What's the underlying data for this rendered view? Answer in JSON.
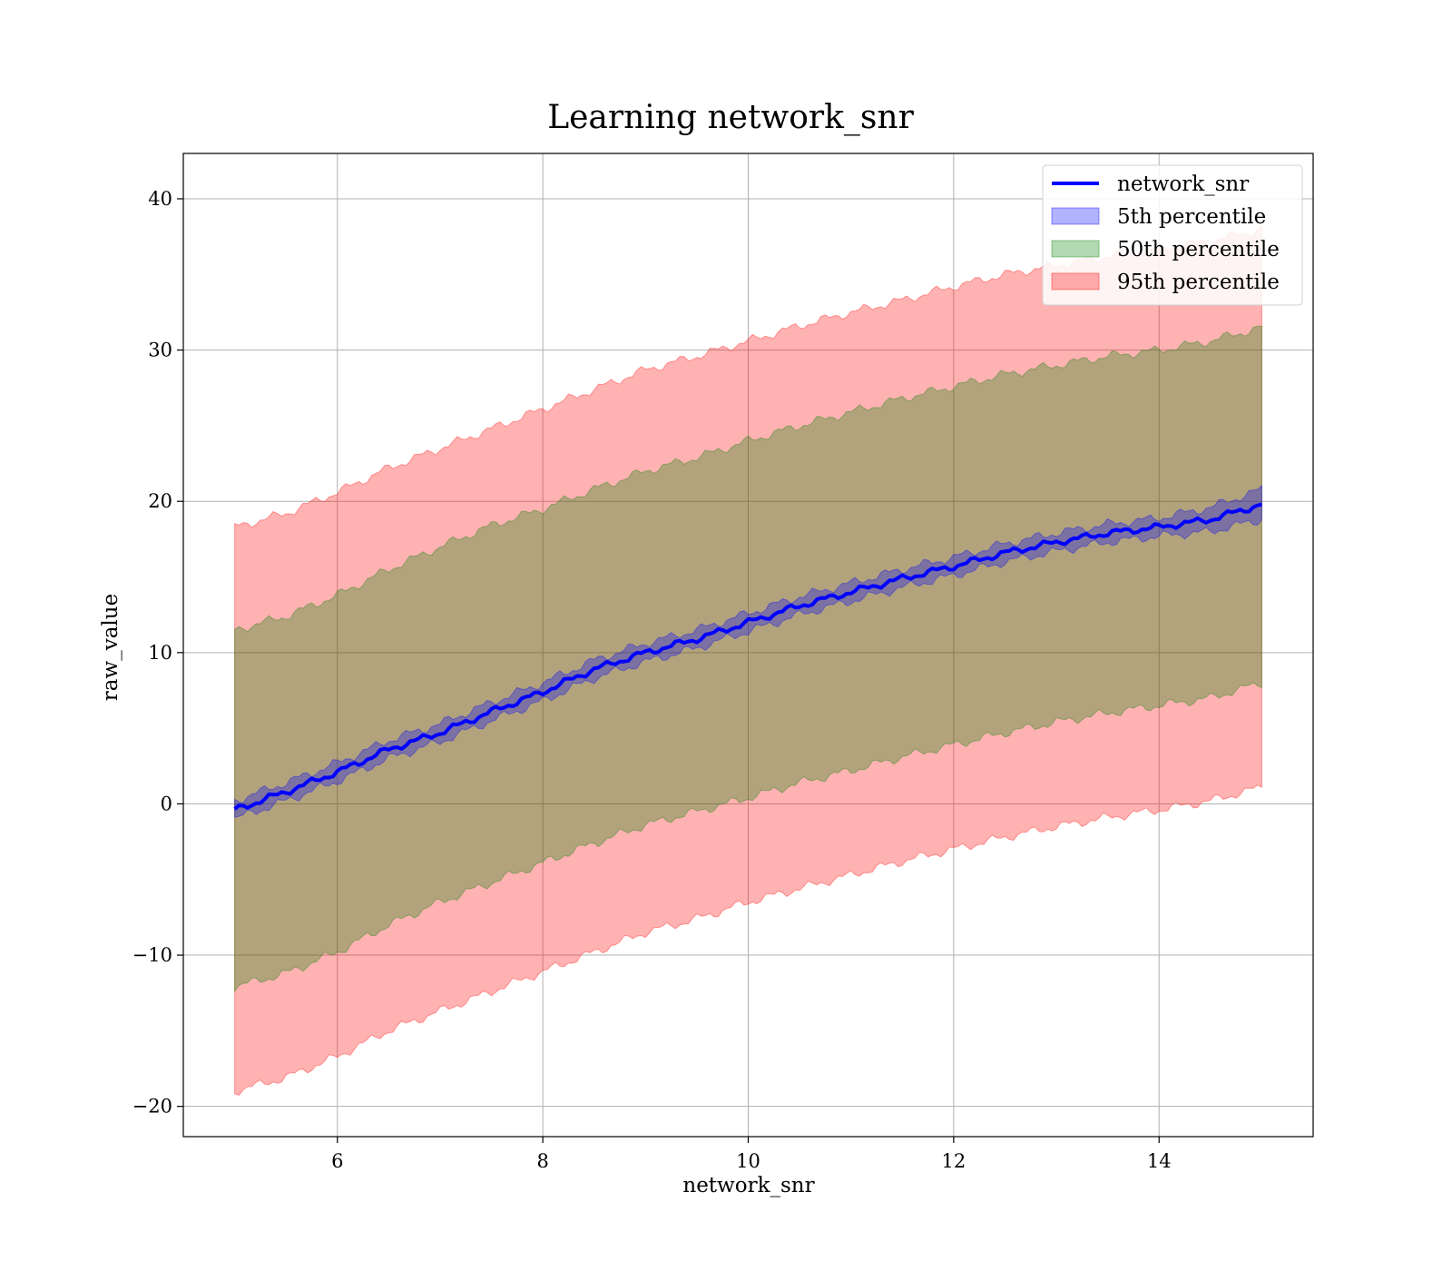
{
  "chart_data": {
    "type": "area",
    "title": "Learning network_snr",
    "xlabel": "network_snr",
    "ylabel": "raw_value",
    "xlim": [
      4.5,
      15.5
    ],
    "ylim": [
      -22,
      43
    ],
    "x_ticks": [
      6,
      8,
      10,
      12,
      14
    ],
    "y_ticks": [
      -20,
      -10,
      0,
      10,
      20,
      30,
      40
    ],
    "x_tick_labels": [
      "6",
      "8",
      "10",
      "12",
      "14"
    ],
    "y_tick_labels": [
      "−20",
      "−10",
      "0",
      "10",
      "20",
      "30",
      "40"
    ],
    "grid": true,
    "legend_position": "top-right",
    "legend": [
      {
        "label": "network_snr",
        "kind": "line",
        "color": "#0000ff"
      },
      {
        "label": "5th percentile",
        "kind": "band",
        "color": "#0000ff"
      },
      {
        "label": "50th percentile",
        "kind": "band",
        "color": "#008000"
      },
      {
        "label": "95th percentile",
        "kind": "band",
        "color": "#ff0000"
      }
    ],
    "x": [
      5,
      5.5,
      6,
      6.5,
      7,
      7.5,
      8,
      8.5,
      9,
      9.5,
      10,
      10.5,
      11,
      11.5,
      12,
      12.5,
      13,
      13.5,
      14,
      14.5,
      15
    ],
    "series": [
      {
        "name": "network_snr",
        "kind": "line",
        "color": "#0000ff",
        "values": [
          -0.4,
          0.8,
          2.1,
          3.6,
          4.7,
          6.1,
          7.4,
          8.9,
          10.0,
          10.9,
          12.0,
          13.1,
          14.0,
          14.9,
          15.7,
          16.6,
          17.3,
          17.9,
          18.3,
          18.8,
          19.8
        ]
      },
      {
        "name": "5th percentile",
        "kind": "band",
        "color": "#0000ff",
        "lower": [
          -1.0,
          0.2,
          1.5,
          3.0,
          4.1,
          5.5,
          6.8,
          8.3,
          9.4,
          10.3,
          11.4,
          12.5,
          13.4,
          14.3,
          15.1,
          16.0,
          16.7,
          17.3,
          17.7,
          18.0,
          18.8
        ],
        "upper": [
          0.2,
          1.4,
          2.7,
          4.2,
          5.3,
          6.7,
          8.0,
          9.5,
          10.6,
          11.5,
          12.6,
          13.7,
          14.6,
          15.5,
          16.3,
          17.2,
          17.9,
          18.5,
          18.9,
          19.6,
          20.8
        ]
      },
      {
        "name": "50th percentile",
        "kind": "band",
        "color": "#008000",
        "lower": [
          -12.1,
          -11.2,
          -9.8,
          -8.0,
          -6.5,
          -5.2,
          -3.9,
          -2.6,
          -1.4,
          -0.5,
          0.4,
          1.4,
          2.2,
          3.1,
          3.9,
          4.7,
          5.4,
          6.0,
          6.5,
          7.0,
          8.0
        ],
        "upper": [
          11.5,
          12.4,
          13.8,
          15.5,
          17.0,
          18.4,
          19.5,
          20.8,
          22.0,
          22.9,
          24.0,
          25.0,
          25.9,
          26.8,
          27.6,
          28.4,
          29.0,
          29.6,
          30.0,
          30.6,
          31.5
        ]
      },
      {
        "name": "95th percentile",
        "kind": "band",
        "color": "#ff0000",
        "lower": [
          -19.0,
          -18.1,
          -16.7,
          -15.0,
          -13.7,
          -12.4,
          -11.1,
          -9.8,
          -8.5,
          -7.6,
          -6.5,
          -5.6,
          -4.7,
          -3.8,
          -3.0,
          -2.2,
          -1.5,
          -0.9,
          -0.4,
          0.2,
          1.1
        ],
        "upper": [
          18.3,
          19.2,
          20.6,
          22.2,
          23.5,
          24.8,
          26.1,
          27.4,
          28.7,
          29.6,
          30.6,
          31.6,
          32.5,
          33.3,
          34.2,
          35.0,
          35.6,
          36.2,
          36.7,
          37.2,
          38.0
        ]
      }
    ]
  }
}
